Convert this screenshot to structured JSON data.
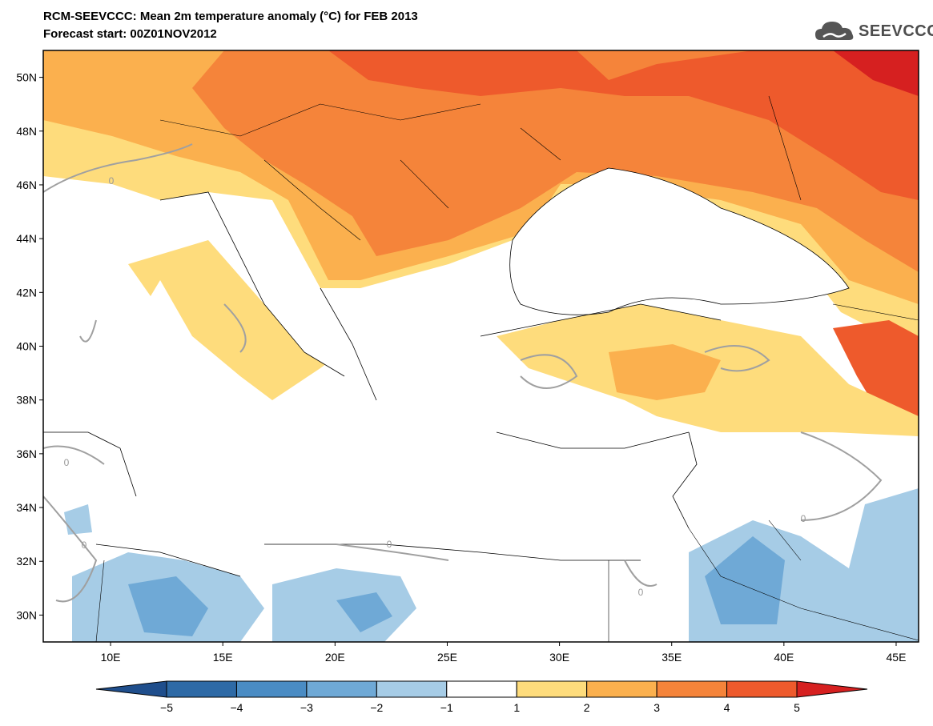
{
  "title": {
    "line1": "RCM-SEEVCCC: Mean 2m temperature anomaly (°C) for FEB 2013",
    "line2": "Forecast start: 00Z01NOV2012"
  },
  "logo": {
    "text": "SEEVCCC",
    "icon": "cloud-icon"
  },
  "map": {
    "lat_labels": [
      "50N",
      "48N",
      "46N",
      "44N",
      "42N",
      "40N",
      "38N",
      "36N",
      "34N",
      "32N",
      "30N"
    ],
    "lon_labels": [
      "10E",
      "15E",
      "20E",
      "25E",
      "30E",
      "35E",
      "40E",
      "45E"
    ],
    "contour_labels": [
      "0",
      "0",
      "0",
      "0",
      "0",
      "0"
    ],
    "lat_range": [
      29,
      51
    ],
    "lon_range": [
      7,
      46
    ],
    "variable": "2m temperature anomaly",
    "unit": "°C"
  },
  "colorbar": {
    "labels": [
      "−5",
      "−4",
      "−3",
      "−2",
      "−1",
      "1",
      "2",
      "3",
      "4",
      "5"
    ],
    "colors": [
      "#1f4e8c",
      "#2e6aa6",
      "#4a8cc4",
      "#6fa9d6",
      "#a6cce6",
      "#ffffff",
      "#fedc7c",
      "#fbb04e",
      "#f5843a",
      "#ee5a2c",
      "#d62020"
    ]
  }
}
